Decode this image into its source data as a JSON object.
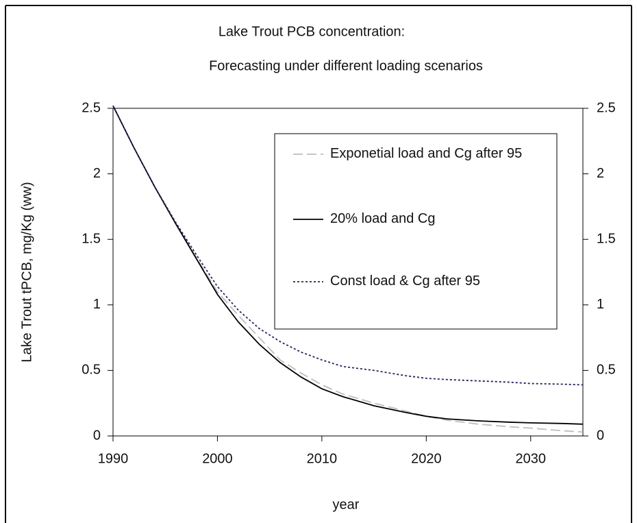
{
  "chart_data": {
    "type": "line",
    "title": "Lake Trout PCB concentration:",
    "subtitle": "Forecasting under different loading scenarios",
    "x_label": "year",
    "y_label": "Lake Trout tPCB, mg/Kg (ww)",
    "x": [
      1990,
      1992,
      1994,
      1996,
      1998,
      2000,
      2002,
      2004,
      2006,
      2008,
      2010,
      2012,
      2015,
      2018,
      2020,
      2022,
      2025,
      2028,
      2030,
      2033,
      2035
    ],
    "series": [
      {
        "name": "Exponetial load and Cg after 95",
        "color": "#bdbdbd",
        "dash": "14,6",
        "values": [
          2.52,
          2.2,
          1.9,
          1.62,
          1.36,
          1.1,
          0.92,
          0.75,
          0.58,
          0.48,
          0.39,
          0.32,
          0.25,
          0.19,
          0.15,
          0.12,
          0.09,
          0.07,
          0.06,
          0.04,
          0.03
        ]
      },
      {
        "name": "20% load and Cg",
        "color": "#000000",
        "dash": "none",
        "values": [
          2.52,
          2.2,
          1.9,
          1.62,
          1.35,
          1.08,
          0.87,
          0.7,
          0.56,
          0.45,
          0.36,
          0.3,
          0.23,
          0.18,
          0.15,
          0.13,
          0.115,
          0.105,
          0.1,
          0.095,
          0.09
        ]
      },
      {
        "name": "Const load & Cg after 95",
        "color": "#1f1f7a",
        "dash": "3,3",
        "values": [
          2.52,
          2.2,
          1.9,
          1.63,
          1.38,
          1.14,
          0.96,
          0.82,
          0.72,
          0.64,
          0.58,
          0.53,
          0.5,
          0.46,
          0.44,
          0.43,
          0.42,
          0.41,
          0.4,
          0.395,
          0.39
        ]
      }
    ],
    "xlim": [
      1990,
      2035
    ],
    "xticks": [
      1990,
      2000,
      2010,
      2020,
      2030
    ],
    "ylim": [
      0,
      2.5
    ],
    "yticks": [
      0,
      0.5,
      1,
      1.5,
      2,
      2.5
    ],
    "y2lim": [
      0,
      2.5
    ],
    "y2ticks": [
      0,
      0.5,
      1,
      1.5,
      2,
      2.5
    ],
    "grid": false
  }
}
